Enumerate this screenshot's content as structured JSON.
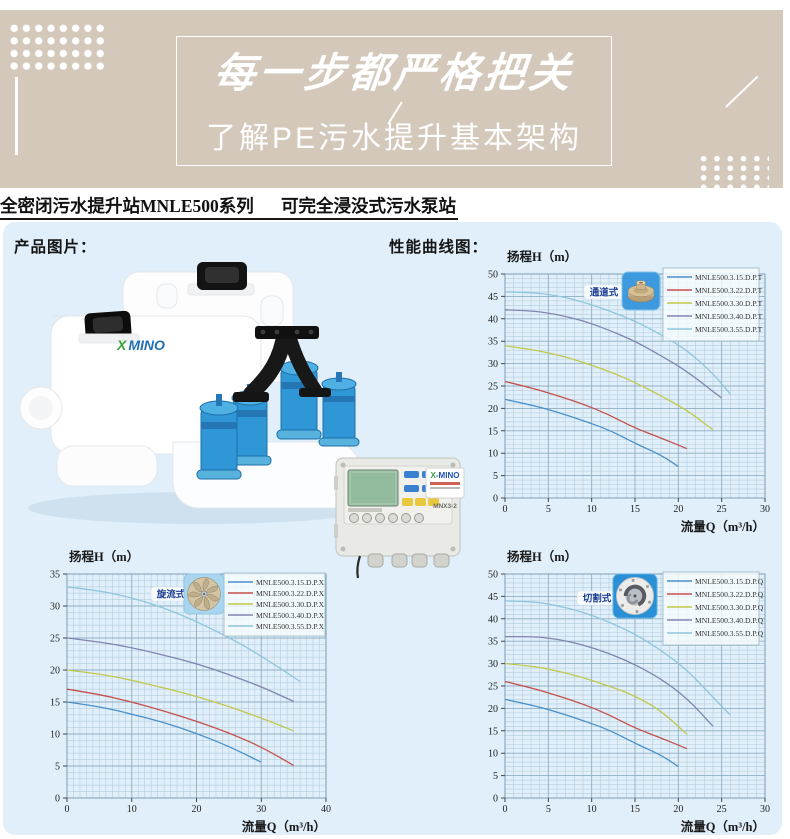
{
  "banner": {
    "title": "每一步都严格把关",
    "subtitle": "了解PE污水提升基本架构"
  },
  "header": {
    "series_name": "全密闭污水提升站MNLE500系列",
    "station_type": "可完全浸没式污水泵站"
  },
  "sections": {
    "product_label": "产品图片：",
    "curves_label": "性能曲线图："
  },
  "product": {
    "brand_x": "X",
    "brand_name": "MINO"
  },
  "controller": {
    "brand_x": "X",
    "brand_name": "-MINO",
    "model": "MNX3-2"
  },
  "colors": {
    "banner_bg": "#d4c8bb",
    "content_bg": "#e0effa",
    "grid_major": "#8fafc4",
    "grid_minor": "#b5cddc",
    "badge_text": "#1c3f94",
    "series_blue": "#4a90c8",
    "series_red": "#c4504c",
    "series_green": "#c2c84c",
    "series_slate": "#8184b2",
    "series_cyan": "#8ec6dc"
  },
  "chart_data": [
    {
      "type": "line",
      "title": "扬程H（m）",
      "xlabel": "流量Q（m³/h）",
      "badge": "通道式",
      "badge_icon": "channel-impeller-icon",
      "xlim": [
        0,
        30
      ],
      "ylim": [
        0,
        50
      ],
      "x_major": 5,
      "y_major": 5,
      "x_minor": 1,
      "y_minor": 1,
      "grid": true,
      "legend_position": "top-right",
      "series": [
        {
          "name": "MNLE500.3.15.D.P.T",
          "color": "#4a90c8",
          "points": [
            [
              0,
              22
            ],
            [
              3,
              20.8
            ],
            [
              6,
              19.2
            ],
            [
              9,
              17.3
            ],
            [
              12,
              15.2
            ],
            [
              15,
              12.2
            ],
            [
              18,
              9.6
            ],
            [
              20,
              7
            ]
          ]
        },
        {
          "name": "MNLE500.3.22.D.P.T",
          "color": "#c4504c",
          "points": [
            [
              0,
              26
            ],
            [
              3,
              24.6
            ],
            [
              6,
              22.9
            ],
            [
              9,
              21
            ],
            [
              12,
              18.6
            ],
            [
              15,
              15.6
            ],
            [
              18,
              13.4
            ],
            [
              21,
              11
            ]
          ]
        },
        {
          "name": "MNLE500.3.30.D.P.T",
          "color": "#c2c84c",
          "points": [
            [
              0,
              34
            ],
            [
              3,
              33.2
            ],
            [
              6,
              32
            ],
            [
              9,
              30.3
            ],
            [
              12,
              28.3
            ],
            [
              15,
              25.8
            ],
            [
              18,
              22.8
            ],
            [
              21,
              19.6
            ],
            [
              24,
              15.2
            ]
          ]
        },
        {
          "name": "MNLE500.3.40.D.P.T",
          "color": "#8184b2",
          "points": [
            [
              0,
              42
            ],
            [
              3,
              41.8
            ],
            [
              6,
              41
            ],
            [
              9,
              39.6
            ],
            [
              12,
              37.5
            ],
            [
              15,
              35
            ],
            [
              18,
              31.8
            ],
            [
              21,
              28.3
            ],
            [
              25,
              22.3
            ]
          ]
        },
        {
          "name": "MNLE500.3.55.D.P.T",
          "color": "#8ec6dc",
          "points": [
            [
              0,
              46
            ],
            [
              3,
              45.9
            ],
            [
              6,
              45.2
            ],
            [
              9,
              43.8
            ],
            [
              12,
              41.8
            ],
            [
              15,
              39.5
            ],
            [
              18,
              36.5
            ],
            [
              21,
              33
            ],
            [
              24,
              27.8
            ],
            [
              26,
              23.2
            ]
          ]
        }
      ]
    },
    {
      "type": "line",
      "title": "扬程H（m）",
      "xlabel": "流量Q（m³/h）",
      "badge": "旋流式",
      "badge_icon": "vortex-impeller-icon",
      "xlim": [
        0,
        40
      ],
      "ylim": [
        0,
        35
      ],
      "x_major": 10,
      "y_major": 5,
      "x_minor": 1,
      "y_minor": 1,
      "grid": true,
      "legend_position": "top-right",
      "series": [
        {
          "name": "MNLE500.3.15.D.P.X",
          "color": "#4a90c8",
          "points": [
            [
              0,
              15
            ],
            [
              5,
              14.3
            ],
            [
              10,
              13.1
            ],
            [
              15,
              11.8
            ],
            [
              20,
              10.1
            ],
            [
              25,
              8.1
            ],
            [
              30,
              5.6
            ]
          ]
        },
        {
          "name": "MNLE500.3.22.D.P.X",
          "color": "#c4504c",
          "points": [
            [
              0,
              17
            ],
            [
              5,
              16.2
            ],
            [
              10,
              15
            ],
            [
              15,
              13.6
            ],
            [
              20,
              12
            ],
            [
              25,
              10.2
            ],
            [
              30,
              8
            ],
            [
              35,
              5.1
            ]
          ]
        },
        {
          "name": "MNLE500.3.30.D.P.X",
          "color": "#c2c84c",
          "points": [
            [
              0,
              20
            ],
            [
              5,
              19.4
            ],
            [
              10,
              18.4
            ],
            [
              15,
              17.2
            ],
            [
              20,
              15.9
            ],
            [
              25,
              14.3
            ],
            [
              30,
              12.5
            ],
            [
              35,
              10.5
            ]
          ]
        },
        {
          "name": "MNLE500.3.40.D.P.X",
          "color": "#8184b2",
          "points": [
            [
              0,
              25
            ],
            [
              5,
              24.4
            ],
            [
              10,
              23.5
            ],
            [
              15,
              22.3
            ],
            [
              20,
              21
            ],
            [
              25,
              19.3
            ],
            [
              30,
              17.4
            ],
            [
              35,
              15.1
            ]
          ]
        },
        {
          "name": "MNLE500.3.55.D.P.X",
          "color": "#8ec6dc",
          "points": [
            [
              0,
              33
            ],
            [
              5,
              32.4
            ],
            [
              10,
              31.3
            ],
            [
              15,
              29.7
            ],
            [
              20,
              27.6
            ],
            [
              25,
              25.1
            ],
            [
              30,
              22.2
            ],
            [
              36,
              18.2
            ]
          ]
        }
      ]
    },
    {
      "type": "line",
      "title": "扬程H（m）",
      "xlabel": "流量Q（m³/h）",
      "badge": "切割式",
      "badge_icon": "cutter-impeller-icon",
      "xlim": [
        0,
        30
      ],
      "ylim": [
        0,
        50
      ],
      "x_major": 5,
      "y_major": 5,
      "x_minor": 1,
      "y_minor": 1,
      "grid": true,
      "legend_position": "top-right",
      "series": [
        {
          "name": "MNLE500.3.15.D.P.Q",
          "color": "#4a90c8",
          "points": [
            [
              0,
              22
            ],
            [
              3,
              20.8
            ],
            [
              6,
              19.2
            ],
            [
              9,
              17.3
            ],
            [
              12,
              15.2
            ],
            [
              15,
              12.2
            ],
            [
              18,
              9.6
            ],
            [
              20,
              7
            ]
          ]
        },
        {
          "name": "MNLE500.3.22.D.P.Q",
          "color": "#c4504c",
          "points": [
            [
              0,
              26
            ],
            [
              3,
              24.6
            ],
            [
              6,
              22.9
            ],
            [
              9,
              21
            ],
            [
              12,
              18.6
            ],
            [
              15,
              15.6
            ],
            [
              18,
              13.4
            ],
            [
              21,
              11
            ]
          ]
        },
        {
          "name": "MNLE500.3.30.D.P.Q",
          "color": "#c2c84c",
          "points": [
            [
              0,
              30
            ],
            [
              3,
              29.5
            ],
            [
              6,
              28.4
            ],
            [
              9,
              26.9
            ],
            [
              12,
              25
            ],
            [
              15,
              22.8
            ],
            [
              18,
              19.5
            ],
            [
              21,
              14.2
            ]
          ]
        },
        {
          "name": "MNLE500.3.40.D.P.Q",
          "color": "#8184b2",
          "points": [
            [
              0,
              36
            ],
            [
              3,
              36.1
            ],
            [
              6,
              35.5
            ],
            [
              9,
              34.2
            ],
            [
              12,
              32.3
            ],
            [
              15,
              29.8
            ],
            [
              18,
              26.6
            ],
            [
              21,
              22.3
            ],
            [
              24,
              16
            ]
          ]
        },
        {
          "name": "MNLE500.3.55.D.P.Q",
          "color": "#8ec6dc",
          "points": [
            [
              0,
              44
            ],
            [
              3,
              43.9
            ],
            [
              6,
              43
            ],
            [
              9,
              41.5
            ],
            [
              12,
              39.3
            ],
            [
              15,
              36.6
            ],
            [
              18,
              33
            ],
            [
              21,
              28.6
            ],
            [
              24,
              22.5
            ],
            [
              26,
              18.5
            ]
          ]
        }
      ]
    }
  ]
}
